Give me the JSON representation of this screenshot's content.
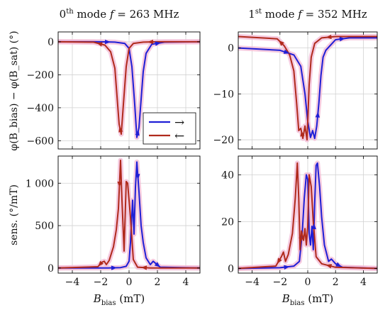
{
  "figure": {
    "xlabel_base": "B",
    "xlabel_sub": "bias",
    "xlabel_unit": " (mT)",
    "ylabel_top": "φ(B_bias) − φ(B_sat) (°)",
    "ylabel_bottom": "sens. (°/mT)",
    "legend": {
      "forward": "→",
      "backward": "←"
    }
  },
  "colors": {
    "forward": "#1f1fd6",
    "backward": "#b02a1c",
    "band": "#f2b8d4",
    "grid": "#d2d2d2",
    "axis": "#000000"
  },
  "columns": [
    {
      "title_sup": "th",
      "title_num": "0",
      "title_mode": " mode ",
      "title_f": "f",
      "title_value": " = 263 MHz"
    },
    {
      "title_sup": "st",
      "title_num": "1",
      "title_mode": " mode ",
      "title_f": "f",
      "title_value": " = 352 MHz"
    }
  ],
  "chart_data": [
    {
      "type": "line",
      "panel": "phase-mode0",
      "xlim": [
        -5,
        5
      ],
      "ylim": [
        -650,
        60
      ],
      "xticks": [
        -4,
        -2,
        0,
        2,
        4
      ],
      "yticks": [
        0,
        -200,
        -400,
        -600
      ],
      "ytick_labels": [
        "0",
        "−200",
        "−400",
        "−600"
      ],
      "grid": true,
      "legend_position": "bottom-right",
      "series": [
        {
          "key": "forward",
          "x": [
            -5,
            -2,
            -1,
            -0.3,
            0,
            0.2,
            0.4,
            0.55,
            0.7,
            0.85,
            1.0,
            1.2,
            1.6,
            2.5,
            5
          ],
          "y": [
            0,
            0,
            -2,
            -10,
            -40,
            -150,
            -380,
            -580,
            -520,
            -350,
            -180,
            -70,
            -15,
            -2,
            0
          ]
        },
        {
          "key": "backward",
          "x": [
            5,
            2,
            1,
            0.3,
            0,
            -0.2,
            -0.4,
            -0.55,
            -0.7,
            -0.85,
            -1.0,
            -1.3,
            -1.7,
            -2.5,
            -5
          ],
          "y": [
            0,
            0,
            -2,
            -10,
            -40,
            -150,
            -380,
            -560,
            -500,
            -330,
            -160,
            -60,
            -20,
            -2,
            0
          ]
        }
      ]
    },
    {
      "type": "line",
      "panel": "sens-mode0",
      "xlim": [
        -5,
        5
      ],
      "ylim": [
        -60,
        1320
      ],
      "xticks": [
        -4,
        -2,
        0,
        2,
        4
      ],
      "yticks": [
        0,
        500,
        1000
      ],
      "ytick_labels": [
        "0",
        "500",
        "1 000"
      ],
      "grid": true,
      "series": [
        {
          "key": "forward",
          "x": [
            -5,
            -1.5,
            -0.6,
            -0.2,
            0,
            0.1,
            0.25,
            0.35,
            0.45,
            0.55,
            0.7,
            0.85,
            1.0,
            1.2,
            1.5,
            1.7,
            1.9,
            2.2,
            5
          ],
          "y": [
            0,
            0,
            5,
            20,
            80,
            300,
            800,
            400,
            950,
            1250,
            900,
            500,
            300,
            120,
            40,
            80,
            50,
            10,
            0
          ]
        },
        {
          "key": "backward",
          "x": [
            5,
            1.5,
            0.6,
            0.3,
            0.1,
            -0.1,
            -0.2,
            -0.35,
            -0.5,
            -0.6,
            -0.75,
            -0.9,
            -1.1,
            -1.4,
            -1.6,
            -1.75,
            -1.9,
            -2.2,
            -5
          ],
          "y": [
            0,
            0,
            10,
            100,
            600,
            1000,
            1020,
            200,
            800,
            1270,
            700,
            450,
            250,
            90,
            40,
            80,
            70,
            15,
            0
          ]
        }
      ]
    },
    {
      "type": "line",
      "panel": "phase-mode1",
      "xlim": [
        -5,
        5
      ],
      "ylim": [
        -22,
        3.5
      ],
      "xticks": [
        -4,
        -2,
        0,
        2,
        4
      ],
      "yticks": [
        0,
        -10,
        -20
      ],
      "ytick_labels": [
        "0",
        "−10",
        "−20"
      ],
      "grid": true,
      "series": [
        {
          "key": "forward",
          "x": [
            -5,
            -2,
            -1,
            -0.5,
            -0.2,
            0,
            0.2,
            0.35,
            0.5,
            0.65,
            0.8,
            0.95,
            1.1,
            1.3,
            1.6,
            2.0,
            3.0,
            5
          ],
          "y": [
            0,
            -0.5,
            -1.5,
            -4,
            -10,
            -16,
            -19.5,
            -18,
            -19.7,
            -17,
            -12,
            -6,
            -2,
            -0.5,
            0.5,
            1.8,
            2.2,
            2.2
          ]
        },
        {
          "key": "backward",
          "x": [
            5,
            2,
            1,
            0.5,
            0.25,
            0.1,
            -0.05,
            -0.2,
            -0.35,
            -0.5,
            -0.65,
            -0.8,
            -1.0,
            -1.3,
            -1.7,
            -2.2,
            -5
          ],
          "y": [
            2.5,
            2.5,
            2.2,
            1.0,
            -2,
            -8,
            -20,
            -17,
            -19.7,
            -17.5,
            -18,
            -12,
            -5,
            -1.5,
            0.5,
            2.0,
            2.5
          ]
        }
      ]
    },
    {
      "type": "line",
      "panel": "sens-mode1",
      "xlim": [
        -5,
        5
      ],
      "ylim": [
        -2,
        48
      ],
      "xticks": [
        -4,
        -2,
        0,
        2,
        4
      ],
      "yticks": [
        0,
        20,
        40
      ],
      "ytick_labels": [
        "0",
        "20",
        "40"
      ],
      "grid": true,
      "series": [
        {
          "key": "forward",
          "x": [
            -5,
            -2,
            -1,
            -0.6,
            -0.4,
            -0.25,
            -0.1,
            0,
            0.1,
            0.2,
            0.3,
            0.4,
            0.5,
            0.6,
            0.7,
            0.85,
            1.0,
            1.2,
            1.5,
            1.7,
            2.0,
            2.5,
            5
          ],
          "y": [
            0,
            0.3,
            1,
            3,
            15,
            30,
            40,
            38,
            15,
            10,
            18,
            8,
            28,
            44,
            45,
            35,
            22,
            10,
            3,
            4,
            2,
            0.5,
            0
          ]
        },
        {
          "key": "backward",
          "x": [
            5,
            2,
            1,
            0.6,
            0.4,
            0.25,
            0.1,
            0,
            -0.1,
            -0.2,
            -0.3,
            -0.45,
            -0.55,
            -0.65,
            -0.75,
            -0.9,
            -1.1,
            -1.4,
            -1.6,
            -1.75,
            -1.9,
            -2.3,
            -5
          ],
          "y": [
            0,
            0.5,
            2,
            5,
            20,
            35,
            40,
            18,
            10,
            17,
            12,
            16,
            8,
            30,
            45,
            30,
            15,
            6,
            3,
            7,
            5,
            1,
            0
          ]
        }
      ]
    }
  ]
}
